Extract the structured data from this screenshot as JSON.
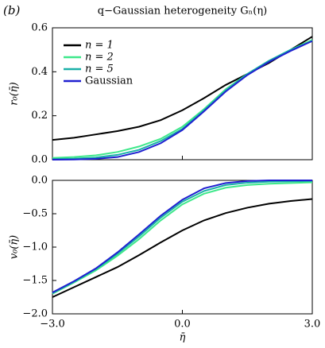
{
  "panel_label": "(b)",
  "chart_data": [
    {
      "type": "line",
      "title": "q−Gaussian heterogeneity Gₙ(η)",
      "ylabel": "r₀(η̄)",
      "x": [
        -3,
        -2.5,
        -2,
        -1.5,
        -1,
        -0.5,
        0,
        0.5,
        1,
        1.5,
        2,
        2.5,
        3
      ],
      "xlim": [
        -3,
        3
      ],
      "xticks": [
        -3,
        0,
        3
      ],
      "ylim": [
        0,
        0.6
      ],
      "yticks": [
        {
          "value": 0,
          "label": "0.0"
        },
        {
          "value": 0.2,
          "label": "0.2"
        },
        {
          "value": 0.4,
          "label": "0.4"
        },
        {
          "value": 0.6,
          "label": "0.6"
        }
      ],
      "legend": "upper left",
      "series": [
        {
          "name": "n = 1",
          "color": "#000000",
          "values": [
            0.09,
            0.1,
            0.115,
            0.13,
            0.15,
            0.18,
            0.225,
            0.28,
            0.34,
            0.39,
            0.44,
            0.5,
            0.56
          ]
        },
        {
          "name": "n = 2",
          "color": "#3ee88a",
          "values": [
            0.008,
            0.012,
            0.02,
            0.035,
            0.06,
            0.095,
            0.15,
            0.23,
            0.32,
            0.39,
            0.45,
            0.5,
            0.545
          ]
        },
        {
          "name": "n = 5",
          "color": "#1ab0a8",
          "values": [
            0.003,
            0.005,
            0.01,
            0.022,
            0.045,
            0.085,
            0.14,
            0.225,
            0.315,
            0.39,
            0.45,
            0.5,
            0.54
          ]
        },
        {
          "name": "Gaussian",
          "color": "#2020d0",
          "values": [
            0,
            0.001,
            0.004,
            0.012,
            0.035,
            0.075,
            0.135,
            0.22,
            0.31,
            0.385,
            0.445,
            0.495,
            0.54
          ]
        }
      ]
    },
    {
      "type": "line",
      "ylabel": "v₀(η̄)",
      "xlabel": "η̄",
      "x": [
        -3,
        -2.5,
        -2,
        -1.5,
        -1,
        -0.5,
        0,
        0.5,
        1,
        1.5,
        2,
        2.5,
        3
      ],
      "xlim": [
        -3,
        3
      ],
      "xticks": [
        {
          "value": -3,
          "label": "−3.0"
        },
        {
          "value": 0,
          "label": "0.0"
        },
        {
          "value": 3,
          "label": "3.0"
        }
      ],
      "ylim": [
        -2,
        0
      ],
      "yticks": [
        {
          "value": -2,
          "label": "−2.0"
        },
        {
          "value": -1.5,
          "label": "−1.5"
        },
        {
          "value": -1,
          "label": "−1.0"
        },
        {
          "value": -0.5,
          "label": "−0.5"
        },
        {
          "value": 0,
          "label": "0.0"
        }
      ],
      "series": [
        {
          "color": "#000000",
          "values": [
            -1.75,
            -1.6,
            -1.45,
            -1.3,
            -1.12,
            -0.93,
            -0.75,
            -0.6,
            -0.49,
            -0.41,
            -0.35,
            -0.31,
            -0.28
          ]
        },
        {
          "color": "#3ee88a",
          "values": [
            -1.7,
            -1.53,
            -1.35,
            -1.13,
            -0.88,
            -0.6,
            -0.36,
            -0.2,
            -0.11,
            -0.07,
            -0.05,
            -0.04,
            -0.03
          ]
        },
        {
          "color": "#1ab0a8",
          "values": [
            -1.69,
            -1.52,
            -1.33,
            -1.1,
            -0.84,
            -0.56,
            -0.32,
            -0.16,
            -0.07,
            -0.035,
            -0.02,
            -0.015,
            -0.01
          ]
        },
        {
          "color": "#2020d0",
          "values": [
            -1.68,
            -1.51,
            -1.32,
            -1.08,
            -0.81,
            -0.53,
            -0.29,
            -0.12,
            -0.04,
            -0.01,
            0,
            0,
            0
          ]
        }
      ]
    }
  ]
}
